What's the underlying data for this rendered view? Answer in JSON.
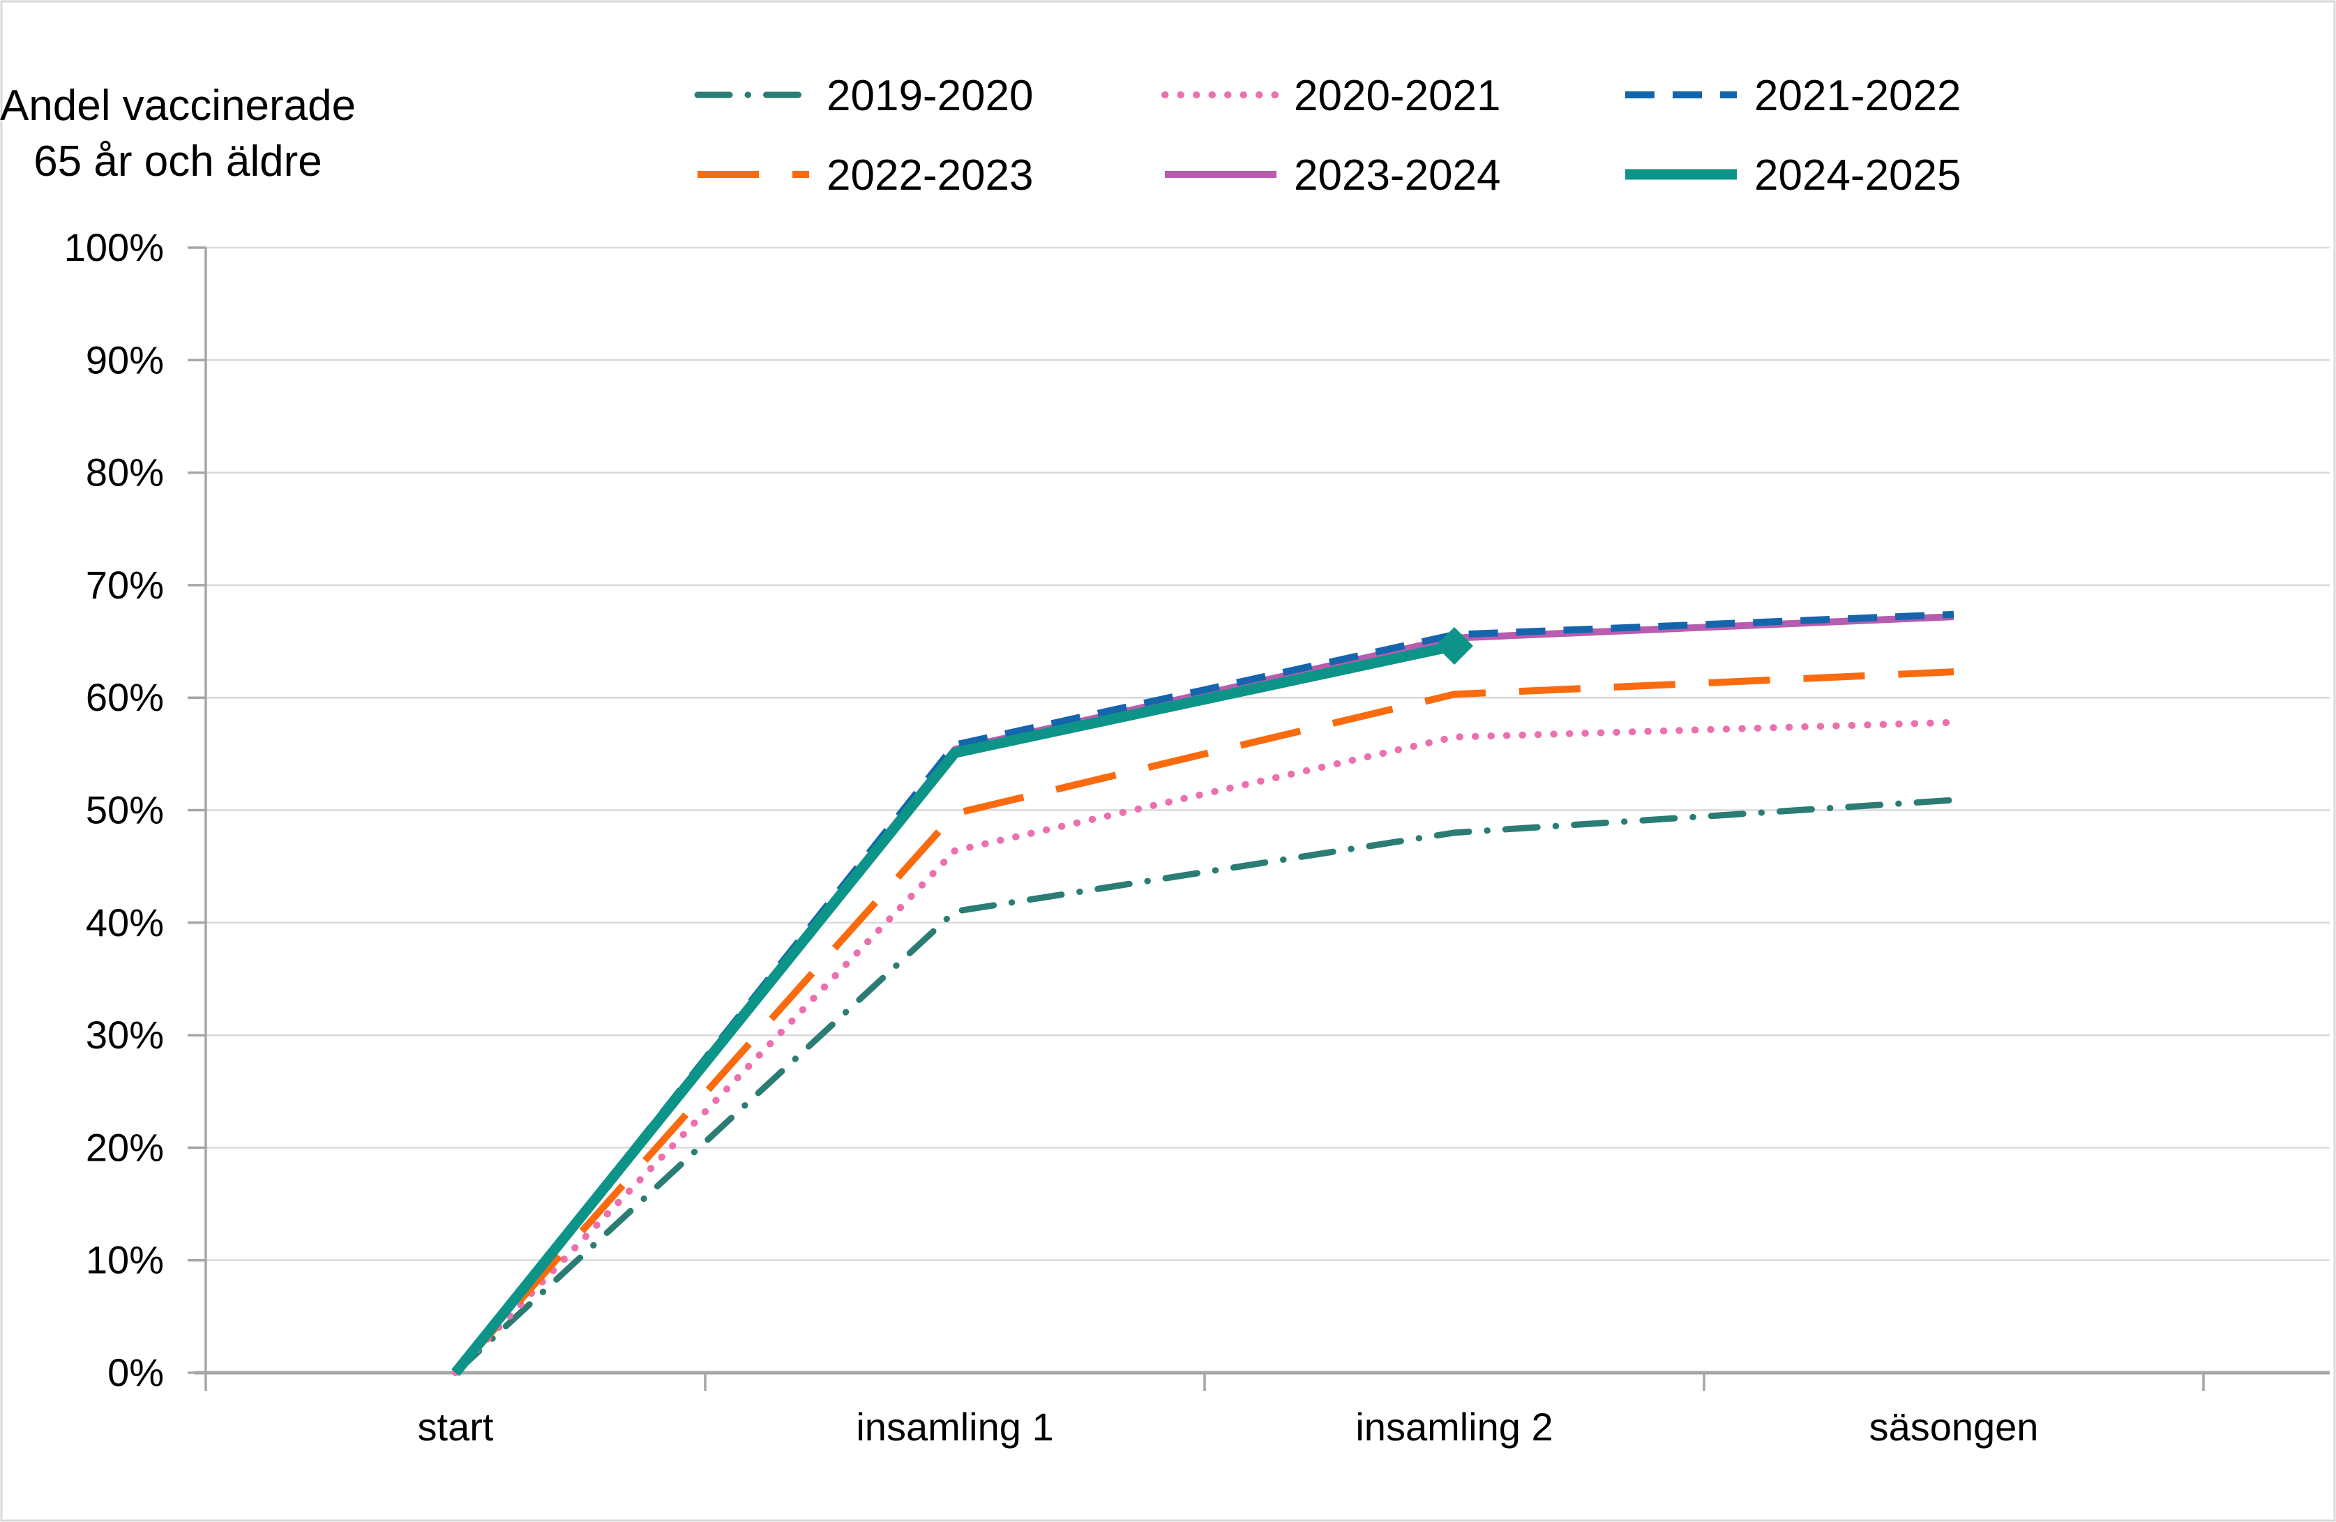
{
  "title": {
    "line1": "Andel vaccinerade",
    "line2": "65 år och äldre"
  },
  "chart_data": {
    "type": "line",
    "categories": [
      "start",
      "insamling 1",
      "insamling 2",
      "säsongen"
    ],
    "ylim": [
      0,
      100
    ],
    "ytick_step": 10,
    "ytick_labels": [
      "0%",
      "10%",
      "20%",
      "30%",
      "40%",
      "50%",
      "60%",
      "70%",
      "80%",
      "90%",
      "100%"
    ],
    "grid": true,
    "legend_position": "top",
    "series": [
      {
        "name": "2019-2020",
        "values": [
          0,
          41.0,
          48.0,
          50.9
        ],
        "color": "#2A7C74",
        "style": "dashdot",
        "width": 9
      },
      {
        "name": "2020-2021",
        "values": [
          0,
          46.4,
          56.5,
          57.8
        ],
        "color": "#EC6FAE",
        "style": "dotted",
        "width": 10
      },
      {
        "name": "2021-2022",
        "values": [
          0,
          55.8,
          65.6,
          67.4
        ],
        "color": "#1565AD",
        "style": "dashed",
        "width": 10
      },
      {
        "name": "2022-2023",
        "values": [
          0,
          49.7,
          60.3,
          62.3
        ],
        "color": "#F96B0E",
        "style": "longdash",
        "width": 10
      },
      {
        "name": "2023-2024",
        "values": [
          0,
          55.4,
          65.3,
          67.2
        ],
        "color": "#B85CB0",
        "style": "solid",
        "width": 10
      },
      {
        "name": "2024-2025",
        "values": [
          0,
          55.1,
          64.6,
          null
        ],
        "color": "#0D9488",
        "style": "solid",
        "width": 15,
        "end_marker": "diamond"
      }
    ]
  }
}
